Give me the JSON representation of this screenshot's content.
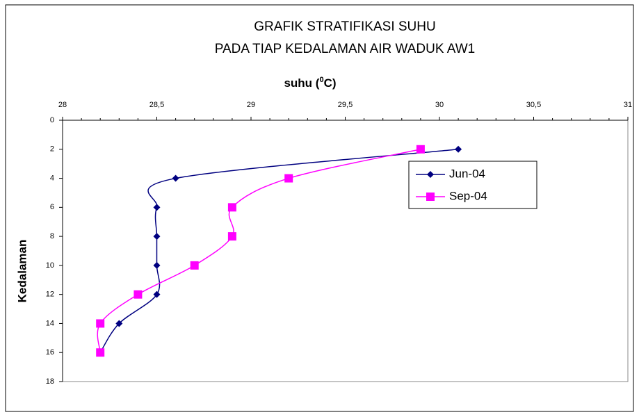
{
  "chart_data": {
    "type": "line",
    "title": [
      "GRAFIK STRATIFIKASI SUHU",
      "PADA TIAP KEDALAMAN AIR WADUK AW1"
    ],
    "x_label": {
      "text": "suhu (",
      "sup": "0",
      "unit": "C)"
    },
    "y_label": "Kedalaman",
    "y": [
      2,
      4,
      6,
      8,
      10,
      12,
      14,
      16
    ],
    "series": [
      {
        "name": "Jun-04",
        "color": "#000080",
        "marker": "diamond",
        "values": [
          30.1,
          28.6,
          28.5,
          28.5,
          28.5,
          28.5,
          28.3,
          28.2
        ]
      },
      {
        "name": "Sep-04",
        "color": "#ff00ff",
        "marker": "square",
        "values": [
          29.9,
          29.2,
          28.9,
          28.9,
          28.7,
          28.4,
          28.2,
          28.2
        ]
      }
    ],
    "xlim": [
      28,
      31
    ],
    "xticks": [
      28,
      {
        "value": 28.5,
        "label": "28,5"
      },
      29,
      {
        "value": 29.5,
        "label": "29,5"
      },
      30,
      {
        "value": 30.5,
        "label": "30,5"
      },
      31
    ],
    "ylim": [
      0,
      18
    ],
    "y_inverted": true,
    "yticks": [
      0,
      2,
      4,
      6,
      8,
      10,
      12,
      14,
      16,
      18
    ],
    "legend": "upper right"
  }
}
